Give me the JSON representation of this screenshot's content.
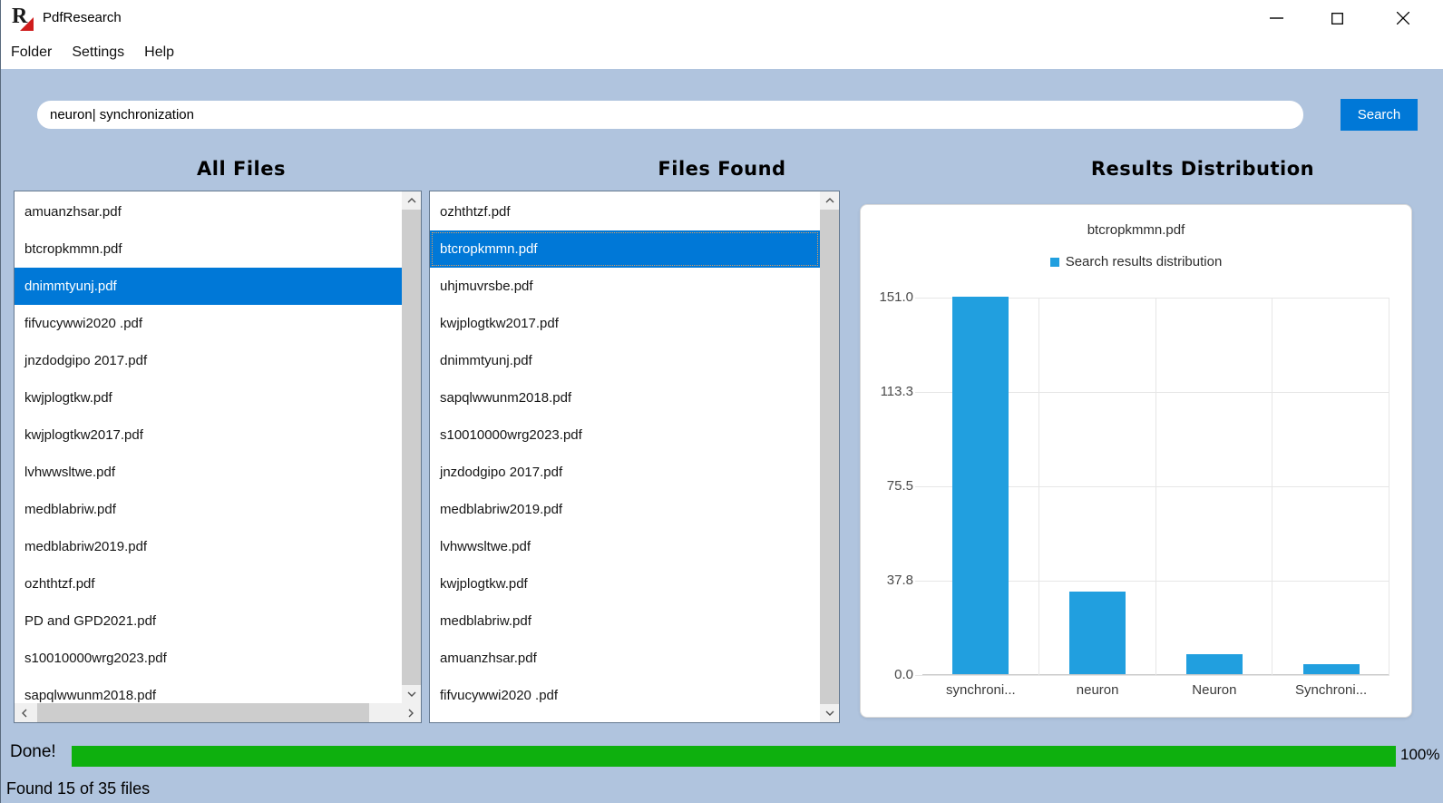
{
  "window": {
    "title": "PdfResearch",
    "icon_letter": "R"
  },
  "menu": {
    "items": [
      {
        "label": "Folder"
      },
      {
        "label": "Settings"
      },
      {
        "label": "Help"
      }
    ]
  },
  "search": {
    "value": "neuron| synchronization",
    "button_label": "Search"
  },
  "panels": {
    "all_files": {
      "header": "All Files",
      "selected_index": 2,
      "selected_item": "dnimmtyunj.pdf",
      "items": [
        "amuanzhsar.pdf",
        "btcropkmmn.pdf",
        "dnimmtyunj.pdf",
        "fifvucywwi2020 .pdf",
        "jnzdodgipo 2017.pdf",
        "kwjplogtkw.pdf",
        "kwjplogtkw2017.pdf",
        "lvhwwsltwe.pdf",
        "medblabriw.pdf",
        "medblabriw2019.pdf",
        "ozhthtzf.pdf",
        "PD and GPD2021.pdf",
        "s10010000wrg2023.pdf",
        "sapqlwwunm2018.pdf"
      ]
    },
    "files_found": {
      "header": "Files Found",
      "selected_index": 1,
      "selected_item": "btcropkmmn.pdf",
      "items": [
        "ozhthtzf.pdf",
        "btcropkmmn.pdf",
        "uhjmuvrsbe.pdf",
        "kwjplogtkw2017.pdf",
        "dnimmtyunj.pdf",
        "sapqlwwunm2018.pdf",
        "s10010000wrg2023.pdf",
        "jnzdodgipo 2017.pdf",
        "medblabriw2019.pdf",
        "lvhwwsltwe.pdf",
        "kwjplogtkw.pdf",
        "medblabriw.pdf",
        "amuanzhsar.pdf",
        "fifvucywwi2020 .pdf"
      ]
    },
    "results": {
      "header": "Results Distribution"
    }
  },
  "chart_data": {
    "type": "bar",
    "title": "btcropkmmn.pdf",
    "legend": [
      {
        "label": "Search results distribution",
        "color": "#219fdf"
      }
    ],
    "legend_position": "top",
    "categories": [
      "synchroni...",
      "neuron",
      "Neuron",
      "Synchroni..."
    ],
    "values": [
      151,
      33,
      8,
      4
    ],
    "ylim": [
      0,
      151
    ],
    "y_ticks": [
      "151.0",
      "113.3",
      "75.5",
      "37.8",
      "0.0"
    ],
    "grid": true,
    "bar_color": "#219fdf"
  },
  "progress": {
    "label": "Done!",
    "percent": 100,
    "percent_label": "100%"
  },
  "status_bar": {
    "text": "Found 15 of 35 files"
  },
  "colors": {
    "background": "#b0c4de",
    "accent": "#0078d7",
    "selection": "#0078d7",
    "bar": "#219fdf",
    "progress": "#0eb00e"
  }
}
